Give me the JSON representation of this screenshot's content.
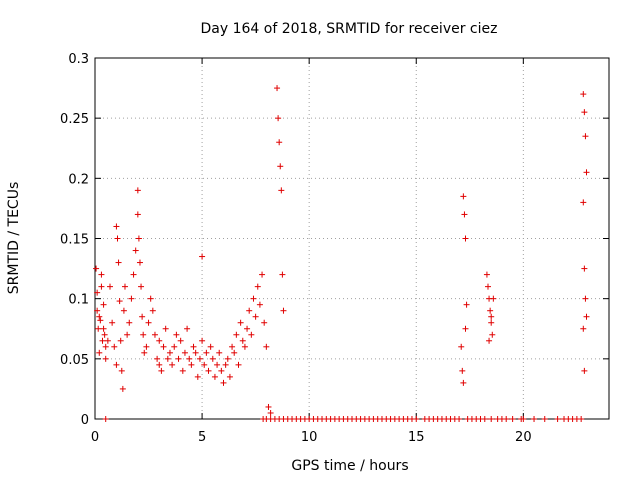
{
  "chart_data": {
    "type": "scatter",
    "title": "Day 164 of 2018, SRMTID for receiver ciez",
    "xlabel": "GPS time / hours",
    "ylabel": "SRMTID / TECUs",
    "xlim": [
      0,
      24
    ],
    "ylim": [
      0,
      0.3
    ],
    "x_ticks": [
      0,
      5,
      10,
      15,
      20
    ],
    "x_tick_labels": [
      "0",
      "5",
      "10",
      "15",
      "20"
    ],
    "y_ticks": [
      0,
      0.05,
      0.1,
      0.15,
      0.2,
      0.25,
      0.3
    ],
    "y_tick_labels": [
      "0",
      "0.05",
      "0.1",
      "0.15",
      "0.2",
      "0.25",
      "0.3"
    ],
    "grid": true,
    "marker": "+",
    "color": "#e00000",
    "series": [
      {
        "name": "SRMTID",
        "x": [
          0.05,
          0.1,
          0.15,
          0.2,
          0.25,
          0.3,
          0.35,
          0.4,
          0.45,
          0.5,
          0.1,
          0.2,
          0.3,
          0.4,
          0.5,
          0.6,
          0.7,
          0.8,
          0.9,
          1.0,
          1.0,
          1.05,
          1.1,
          1.15,
          1.2,
          1.25,
          1.3,
          1.35,
          1.4,
          1.5,
          1.6,
          1.7,
          1.8,
          1.9,
          2.0,
          2.0,
          2.05,
          2.1,
          2.15,
          2.2,
          2.25,
          2.3,
          2.4,
          2.5,
          2.6,
          2.7,
          2.8,
          2.9,
          3.0,
          3.0,
          3.1,
          3.2,
          3.3,
          3.4,
          3.5,
          3.6,
          3.7,
          3.8,
          3.9,
          4.0,
          4.1,
          4.2,
          4.3,
          4.4,
          4.5,
          4.6,
          4.7,
          4.8,
          4.9,
          5.0,
          5.0,
          5.1,
          5.2,
          5.3,
          5.4,
          5.5,
          5.6,
          5.7,
          5.8,
          5.9,
          6.0,
          6.1,
          6.2,
          6.3,
          6.4,
          6.5,
          6.6,
          6.7,
          6.8,
          6.9,
          7.0,
          7.1,
          7.2,
          7.3,
          7.4,
          7.5,
          7.6,
          7.7,
          7.8,
          7.9,
          8.0,
          8.1,
          8.2,
          8.5,
          8.55,
          8.6,
          8.65,
          8.7,
          8.75,
          8.8,
          17.2,
          17.25,
          17.3,
          17.35,
          17.1,
          17.15,
          17.2,
          17.3,
          18.3,
          18.35,
          18.4,
          18.45,
          18.5,
          18.55,
          18.6,
          18.4,
          18.5,
          22.8,
          22.85,
          22.9,
          22.95,
          22.8,
          22.85,
          22.9,
          22.95,
          22.8,
          22.85
        ],
        "y": [
          0.125,
          0.09,
          0.075,
          0.055,
          0.082,
          0.11,
          0.065,
          0.095,
          0.07,
          0.06,
          0.105,
          0.085,
          0.12,
          0.075,
          0.05,
          0.065,
          0.11,
          0.08,
          0.06,
          0.045,
          0.16,
          0.15,
          0.13,
          0.098,
          0.065,
          0.04,
          0.025,
          0.09,
          0.11,
          0.07,
          0.08,
          0.1,
          0.12,
          0.14,
          0.19,
          0.17,
          0.15,
          0.13,
          0.11,
          0.085,
          0.07,
          0.055,
          0.06,
          0.08,
          0.1,
          0.09,
          0.07,
          0.05,
          0.045,
          0.065,
          0.04,
          0.06,
          0.075,
          0.05,
          0.055,
          0.045,
          0.06,
          0.07,
          0.05,
          0.065,
          0.04,
          0.055,
          0.075,
          0.05,
          0.045,
          0.06,
          0.055,
          0.035,
          0.05,
          0.135,
          0.065,
          0.045,
          0.055,
          0.04,
          0.06,
          0.05,
          0.035,
          0.045,
          0.055,
          0.04,
          0.03,
          0.045,
          0.05,
          0.035,
          0.06,
          0.055,
          0.07,
          0.045,
          0.08,
          0.065,
          0.06,
          0.075,
          0.09,
          0.07,
          0.1,
          0.085,
          0.11,
          0.095,
          0.12,
          0.08,
          0.06,
          0.01,
          0.005,
          0.275,
          0.25,
          0.23,
          0.21,
          0.19,
          0.12,
          0.09,
          0.185,
          0.17,
          0.15,
          0.095,
          0.06,
          0.04,
          0.03,
          0.075,
          0.12,
          0.11,
          0.1,
          0.09,
          0.08,
          0.07,
          0.1,
          0.065,
          0.085,
          0.27,
          0.255,
          0.235,
          0.205,
          0.18,
          0.125,
          0.1,
          0.085,
          0.075,
          0.04
        ],
        "zero_flag_x": [
          0.5,
          7.85,
          8.0,
          8.2,
          8.4,
          8.6,
          8.8,
          9.0,
          9.2,
          9.4,
          9.6,
          9.8,
          10.0,
          10.2,
          10.4,
          10.6,
          10.8,
          11.0,
          11.2,
          11.4,
          11.6,
          11.8,
          12.0,
          12.2,
          12.4,
          12.6,
          12.8,
          13.0,
          13.2,
          13.4,
          13.6,
          13.8,
          14.0,
          14.2,
          14.4,
          14.6,
          14.8,
          15.0,
          15.4,
          15.6,
          15.8,
          16.0,
          16.2,
          16.4,
          16.6,
          16.8,
          17.0,
          17.4,
          17.6,
          17.8,
          18.0,
          18.2,
          18.5,
          18.8,
          19.0,
          19.2,
          19.5,
          19.9,
          20.0,
          20.5,
          21.0,
          21.6,
          21.9,
          22.1,
          22.3,
          22.5,
          22.7
        ]
      }
    ]
  }
}
